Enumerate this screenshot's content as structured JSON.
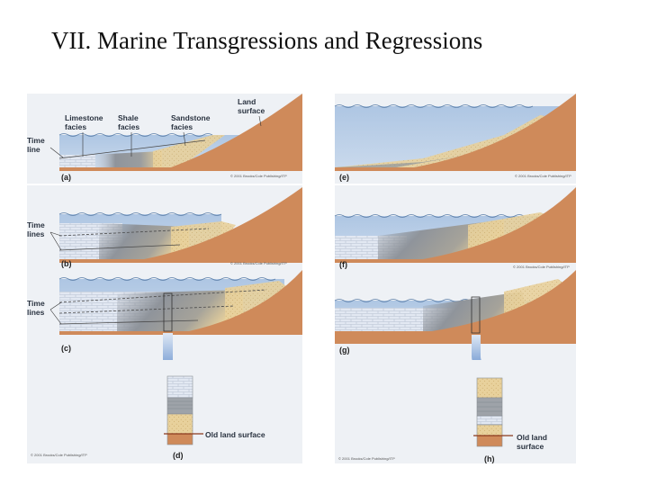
{
  "title": "VII. Marine Transgressions and Regressions",
  "labels": {
    "land_surface": [
      "Land",
      "surface"
    ],
    "limestone_facies": [
      "Limestone",
      "facies"
    ],
    "shale_facies": [
      "Shale",
      "facies"
    ],
    "sandstone_facies": [
      "Sandstone",
      "facies"
    ],
    "time_line": [
      "Time",
      "line"
    ],
    "time_lines": [
      "Time",
      "lines"
    ],
    "old_land_surface": "Old land surface",
    "old_land_surface_wrapped": [
      "Old land",
      "surface"
    ]
  },
  "panels": [
    {
      "id": "a",
      "label": "(a)",
      "copyright": "© 2001 Brooks/Cole Publishing/ITP"
    },
    {
      "id": "b",
      "label": "(b)",
      "copyright": "© 2001 Brooks/Cole Publishing/ITP"
    },
    {
      "id": "c",
      "label": "(c)",
      "copyright": "© 2001 Brooks/Cole Publishing/ITP"
    },
    {
      "id": "d",
      "label": "(d)"
    },
    {
      "id": "e",
      "label": "(e)",
      "copyright": "© 2001 Brooks/Cole Publishing/ITP"
    },
    {
      "id": "f",
      "label": "(f)",
      "copyright": "© 2001 Brooks/Cole Publishing/ITP"
    },
    {
      "id": "g",
      "label": "(g)"
    },
    {
      "id": "h",
      "label": "(h)",
      "copyright": "© 2001 Brooks/Cole Publishing/ITP"
    }
  ],
  "colors": {
    "land": "#cf8a5a",
    "water": "#b6cce6",
    "limestone": "#dfe6f2",
    "shale": "#8f949b",
    "sandstone": "#e9d2a0",
    "panel_bg": "#eef1f5"
  }
}
